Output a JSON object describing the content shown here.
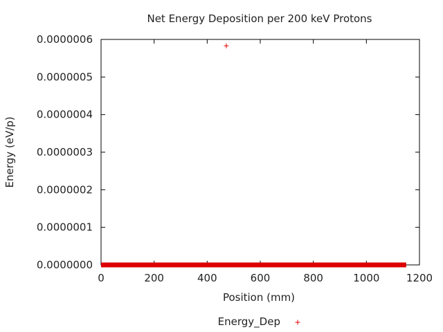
{
  "chart_data": {
    "type": "scatter",
    "title": "Net Energy Deposition per 200 keV Protons",
    "xlabel": "Position (mm)",
    "ylabel": "Energy (eV/p)",
    "xlim": [
      0,
      1200
    ],
    "ylim": [
      0,
      6e-07
    ],
    "xticks": [
      0,
      200,
      400,
      600,
      800,
      1000,
      1200
    ],
    "yticks": [
      "0.0000000",
      "0.0000001",
      "0.0000002",
      "0.0000003",
      "0.0000004",
      "0.0000005",
      "0.0000006"
    ],
    "grid": false,
    "legend_position": "bottom-center",
    "series": [
      {
        "name": "Energy_Dep",
        "color": "#dd0000",
        "marker": "plus",
        "baseline": {
          "x_start": 0,
          "x_end": 1150,
          "y": 0
        },
        "points": [
          {
            "x": 472,
            "y": 5.83e-07
          }
        ]
      }
    ]
  }
}
